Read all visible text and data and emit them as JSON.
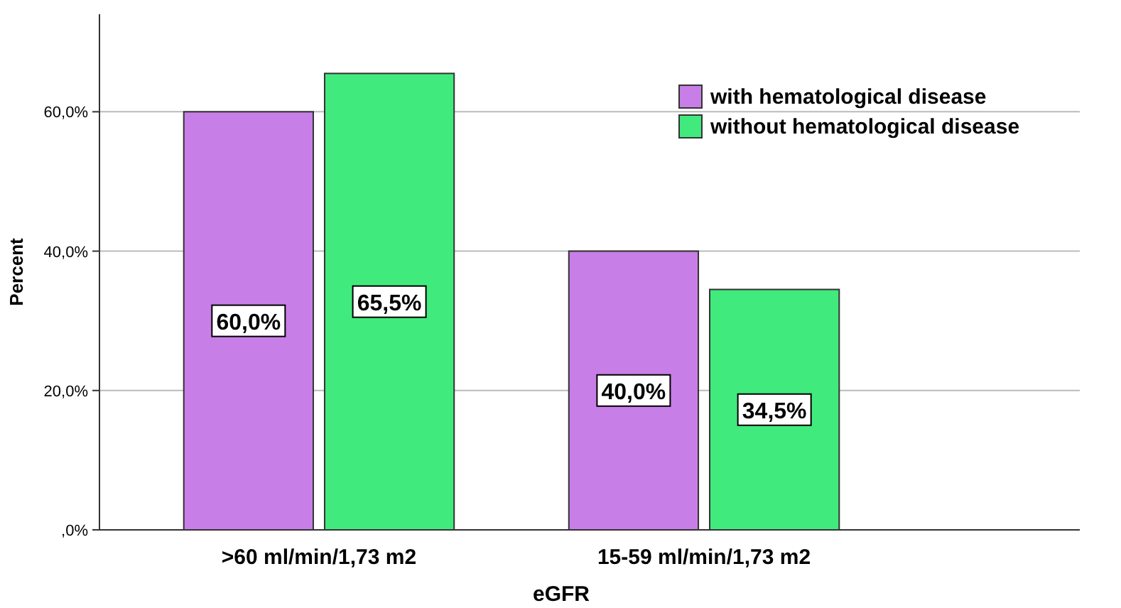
{
  "chart_data": {
    "type": "bar",
    "xlabel": "eGFR",
    "ylabel": "Percent",
    "categories": [
      ">60 ml/min/1,73 m2",
      "15-59 ml/min/1,73 m2"
    ],
    "series": [
      {
        "name": "with hematological disease",
        "color": "#c77ee6",
        "values": [
          60.0,
          40.0
        ],
        "value_labels": [
          "60,0%",
          "40,0%"
        ]
      },
      {
        "name": "without hematological disease",
        "color": "#41ea7d",
        "values": [
          65.5,
          34.5
        ],
        "value_labels": [
          "65,5%",
          "34,5%"
        ]
      }
    ],
    "ylim": [
      0,
      74
    ],
    "yticks": [
      {
        "value": 0,
        "label": ",0%"
      },
      {
        "value": 20,
        "label": "20,0%"
      },
      {
        "value": 40,
        "label": "40,0%"
      },
      {
        "value": 60,
        "label": "60,0%"
      }
    ],
    "grid": "y",
    "legend": "top right"
  }
}
